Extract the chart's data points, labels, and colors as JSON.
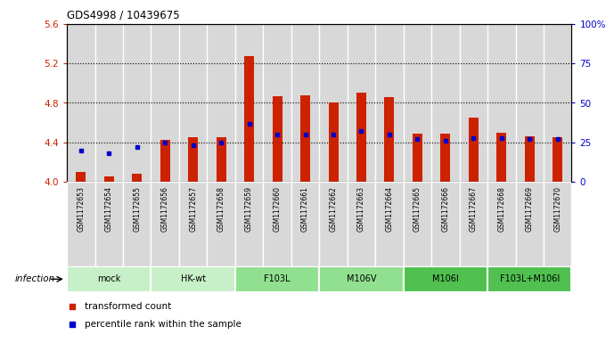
{
  "title": "GDS4998 / 10439675",
  "samples": [
    "GSM1172653",
    "GSM1172654",
    "GSM1172655",
    "GSM1172656",
    "GSM1172657",
    "GSM1172658",
    "GSM1172659",
    "GSM1172660",
    "GSM1172661",
    "GSM1172662",
    "GSM1172663",
    "GSM1172664",
    "GSM1172665",
    "GSM1172666",
    "GSM1172667",
    "GSM1172668",
    "GSM1172669",
    "GSM1172670"
  ],
  "transformed_counts": [
    4.1,
    4.06,
    4.08,
    4.43,
    4.45,
    4.45,
    5.27,
    4.87,
    4.88,
    4.8,
    4.9,
    4.86,
    4.49,
    4.49,
    4.65,
    4.5,
    4.46,
    4.45
  ],
  "percentile_ranks": [
    20,
    18,
    22,
    25,
    23,
    25,
    37,
    30,
    30,
    30,
    32,
    30,
    27,
    26,
    28,
    28,
    27,
    27
  ],
  "groups": [
    {
      "label": "mock",
      "color": "#c8f0c8",
      "start": 0,
      "end": 2
    },
    {
      "label": "HK-wt",
      "color": "#c8f0c8",
      "start": 3,
      "end": 5
    },
    {
      "label": "F103L",
      "color": "#90e090",
      "start": 6,
      "end": 8
    },
    {
      "label": "M106V",
      "color": "#90e090",
      "start": 9,
      "end": 11
    },
    {
      "label": "M106I",
      "color": "#50c050",
      "start": 12,
      "end": 14
    },
    {
      "label": "F103L+M106I",
      "color": "#50c050",
      "start": 15,
      "end": 17
    }
  ],
  "ylim": [
    4.0,
    5.6
  ],
  "yticks_left": [
    4.0,
    4.4,
    4.8,
    5.2,
    5.6
  ],
  "yticks_right": [
    0,
    25,
    50,
    75,
    100
  ],
  "bar_color": "#cc2200",
  "dot_color": "#0000cc",
  "bar_width": 0.35,
  "group_label": "infection",
  "legend_items": [
    {
      "color": "#cc2200",
      "label": "transformed count"
    },
    {
      "color": "#0000cc",
      "label": "percentile rank within the sample"
    }
  ]
}
